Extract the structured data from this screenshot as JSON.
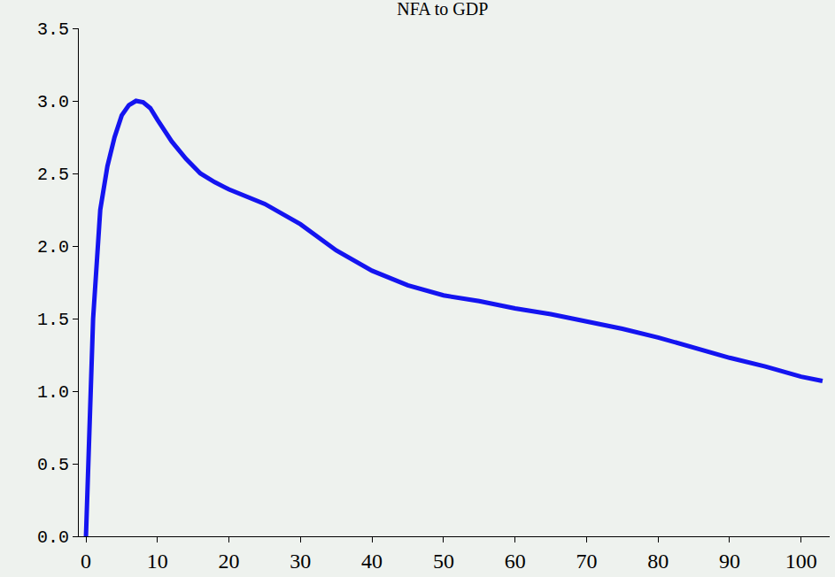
{
  "chart_data": {
    "type": "line",
    "title": "NFA to GDP",
    "x": [
      0,
      1,
      2,
      3,
      4,
      5,
      6,
      7,
      8,
      9,
      10,
      12,
      14,
      16,
      18,
      20,
      25,
      30,
      35,
      40,
      45,
      50,
      55,
      60,
      65,
      70,
      75,
      80,
      85,
      90,
      95,
      100,
      103
    ],
    "values": [
      0,
      1.5,
      2.25,
      2.55,
      2.75,
      2.9,
      2.97,
      3.0,
      2.99,
      2.95,
      2.87,
      2.72,
      2.6,
      2.5,
      2.44,
      2.39,
      2.29,
      2.15,
      1.97,
      1.83,
      1.73,
      1.66,
      1.62,
      1.57,
      1.53,
      1.48,
      1.43,
      1.37,
      1.3,
      1.23,
      1.17,
      1.1,
      1.07
    ],
    "color": "#1414f0",
    "xlim": [
      -1,
      104
    ],
    "xticks": [
      0,
      10,
      20,
      30,
      40,
      50,
      60,
      70,
      80,
      90,
      100
    ],
    "ylim": [
      0,
      3.5
    ],
    "yticks": [
      {
        "value": 0,
        "label": "0.0"
      },
      {
        "value": 0.5,
        "label": "0.5"
      },
      {
        "value": 1,
        "label": "1.0"
      },
      {
        "value": 1.5,
        "label": "1.5"
      },
      {
        "value": 2,
        "label": "2.0"
      },
      {
        "value": 2.5,
        "label": "2.5"
      },
      {
        "value": 3,
        "label": "3.0"
      },
      {
        "value": 3.5,
        "label": "3.5"
      }
    ],
    "grid": false
  }
}
